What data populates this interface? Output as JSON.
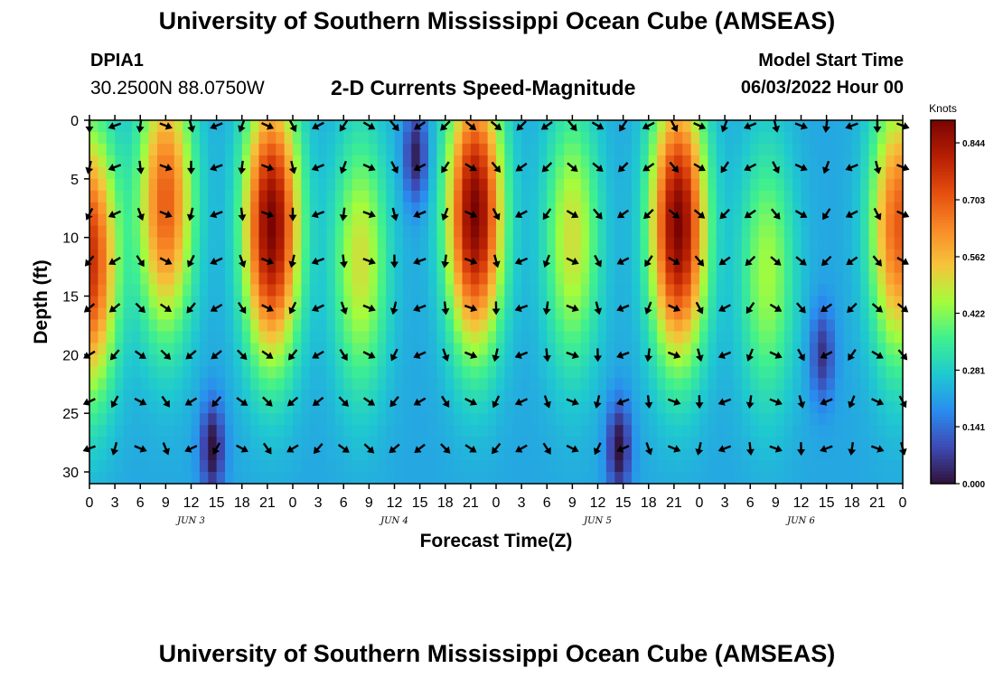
{
  "header": {
    "title": "University of Southern Mississippi Ocean Cube (AMSEAS)",
    "station_id": "DPIA1",
    "station_coords": "30.2500N  88.0750W",
    "subtitle": "2-D Currents Speed-Magnitude",
    "model_start_label": "Model Start Time",
    "model_start_value": "06/03/2022 Hour 00"
  },
  "footer": {
    "repeated_title": "University of Southern Mississippi Ocean Cube (AMSEAS)"
  },
  "colors": {
    "scale": [
      "#30123b",
      "#3e4ab3",
      "#2a8cf0",
      "#1fc9d0",
      "#3ff08f",
      "#a4fc3c",
      "#f6c43b",
      "#f98b28",
      "#e44e0f",
      "#b61e02",
      "#7a0403"
    ],
    "arrow": "#000000",
    "axis": "#000000"
  },
  "chart_data": {
    "type": "heatmap",
    "title": "2-D Currents Speed-Magnitude",
    "xlabel": "Forecast Time(Z)",
    "ylabel": "Depth (ft)",
    "x_range_hours": [
      0,
      96
    ],
    "ylim": [
      0,
      31
    ],
    "y_ticks": [
      0,
      5,
      10,
      15,
      20,
      25,
      30
    ],
    "x_tick_labels": [
      "0",
      "3",
      "6",
      "9",
      "12",
      "15",
      "18",
      "21",
      "0",
      "3",
      "6",
      "9",
      "12",
      "15",
      "18",
      "21",
      "0",
      "3",
      "6",
      "9",
      "12",
      "15",
      "18",
      "21",
      "0",
      "3",
      "6",
      "9",
      "12",
      "15",
      "18",
      "21",
      "0"
    ],
    "date_labels": [
      {
        "label": "JUN 3",
        "hour": 12
      },
      {
        "label": "JUN 4",
        "hour": 36
      },
      {
        "label": "JUN 5",
        "hour": 60
      },
      {
        "label": "JUN 6",
        "hour": 84
      }
    ],
    "colorbar": {
      "label": "Knots",
      "min": 0,
      "max": 0.9,
      "ticks": [
        0.0,
        0.141,
        0.281,
        0.422,
        0.562,
        0.703,
        0.844
      ],
      "tick_labels": [
        "0.000",
        "0.141",
        "0.281",
        "0.422",
        "0.562",
        "0.703",
        "0.844"
      ]
    },
    "speed_peaks_knots": [
      {
        "hour": 0.0,
        "depth_ft": 12,
        "speed": 0.78
      },
      {
        "hour": 9.0,
        "depth_ft": 7,
        "speed": 0.7
      },
      {
        "hour": 21.5,
        "depth_ft": 9,
        "speed": 0.9
      },
      {
        "hour": 32.0,
        "depth_ft": 12,
        "speed": 0.5
      },
      {
        "hour": 45.5,
        "depth_ft": 8,
        "speed": 0.9
      },
      {
        "hour": 57.0,
        "depth_ft": 10,
        "speed": 0.5
      },
      {
        "hour": 69.5,
        "depth_ft": 9,
        "speed": 0.9
      },
      {
        "hour": 80.0,
        "depth_ft": 13,
        "speed": 0.45
      },
      {
        "hour": 95.5,
        "depth_ft": 9,
        "speed": 0.7
      }
    ],
    "speed_minima": [
      {
        "hour": 14.5,
        "depth_ft": 28,
        "speed": 0.03
      },
      {
        "hour": 38.5,
        "depth_ft": 3,
        "speed": 0.05
      },
      {
        "hour": 62.5,
        "depth_ft": 28,
        "speed": 0.03
      },
      {
        "hour": 86.5,
        "depth_ft": 20,
        "speed": 0.08
      }
    ],
    "arrow_depths_ft": [
      0,
      4,
      8,
      12,
      16,
      20,
      24,
      28
    ],
    "arrow_hours": [
      0,
      3,
      6,
      9,
      12,
      15,
      18,
      21,
      24,
      27,
      30,
      33,
      36,
      39,
      42,
      45,
      48,
      51,
      54,
      57,
      60,
      63,
      66,
      69,
      72,
      75,
      78,
      81,
      84,
      87,
      90,
      93,
      96
    ]
  }
}
